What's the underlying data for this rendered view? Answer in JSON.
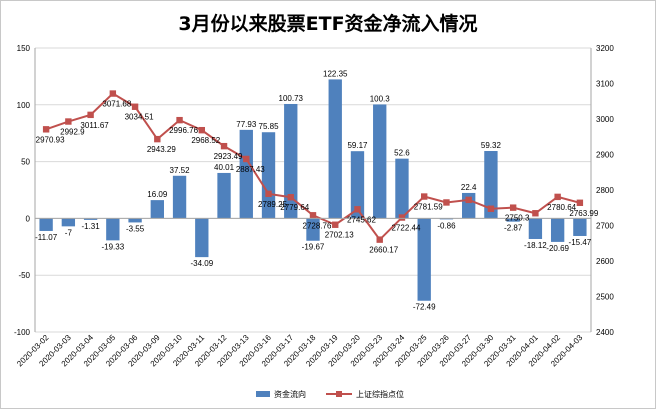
{
  "chart_data": {
    "type": "bar+line",
    "title": "3月份以来股票ETF资金净流入情况",
    "categories": [
      "2020-03-02",
      "2020-03-03",
      "2020-03-04",
      "2020-03-05",
      "2020-03-06",
      "2020-03-09",
      "2020-03-10",
      "2020-03-11",
      "2020-03-12",
      "2020-03-13",
      "2020-03-16",
      "2020-03-17",
      "2020-03-18",
      "2020-03-19",
      "2020-03-20",
      "2020-03-23",
      "2020-03-24",
      "2020-03-25",
      "2020-03-26",
      "2020-03-27",
      "2020-03-30",
      "2020-03-31",
      "2020-04-01",
      "2020-04-02",
      "2020-04-03"
    ],
    "series": [
      {
        "name": "资金流向",
        "type": "bar",
        "axis": "left",
        "color": "#4f81bd",
        "values": [
          -11.07,
          -7,
          -1.31,
          -19.33,
          -3.55,
          16.09,
          37.52,
          -34.09,
          40.01,
          77.93,
          75.85,
          100.73,
          -19.67,
          122.35,
          59.17,
          100.3,
          52.6,
          -72.49,
          -0.86,
          22.4,
          59.32,
          -2.87,
          -18.12,
          -20.69,
          -15.47
        ],
        "labels": [
          "-11.07",
          "-7",
          "-1.31",
          "-19.33",
          "-3.55",
          "16.09",
          "37.52",
          "-34.09",
          "40.01",
          "77.93",
          "75.85",
          "100.73",
          "-19.67",
          "122.35",
          "59.17",
          "100.3",
          "52.6",
          "-72.49",
          "-0.86",
          "22.4",
          "59.32",
          "-2.87",
          "-18.12",
          "-20.69",
          "-15.47"
        ]
      },
      {
        "name": "上证综指点位",
        "type": "line",
        "axis": "right",
        "color": "#c0504d",
        "values": [
          2970.93,
          2992.9,
          3011.67,
          3071.68,
          3034.51,
          2943.29,
          2996.76,
          2968.52,
          2923.49,
          2887.43,
          2789.25,
          2779.64,
          2728.76,
          2702.13,
          2745.62,
          2660.17,
          2722.44,
          2781.59,
          2764.91,
          2772.2,
          2747.21,
          2750.3,
          2734.52,
          2780.64,
          2763.99
        ],
        "labels": [
          "2970.93",
          "2992.9",
          "3011.67",
          "3071.68",
          "3034.51",
          "2943.29",
          "2996.76",
          "2968.52",
          "2923.49",
          "2887.43",
          "2789.25",
          "2779.64",
          "2728.76",
          "2702.13",
          "2745.62",
          "2660.17",
          "2722.44",
          "2781.59",
          "",
          "",
          "",
          "2750.3",
          "",
          "2780.64",
          "2763.99"
        ]
      }
    ],
    "left_axis": {
      "min": -100,
      "max": 150,
      "step": 50,
      "tick_labels": [
        "-100",
        "-50",
        "0",
        "50",
        "100",
        "150"
      ]
    },
    "right_axis": {
      "min": 2400,
      "max": 3200,
      "step": 100,
      "tick_labels": [
        "2400",
        "2500",
        "2600",
        "2700",
        "2800",
        "2900",
        "3000",
        "3100",
        "3200"
      ]
    },
    "grid": true,
    "legend": {
      "position": "bottom",
      "items": [
        "资金流向",
        "上证综指点位"
      ]
    }
  }
}
